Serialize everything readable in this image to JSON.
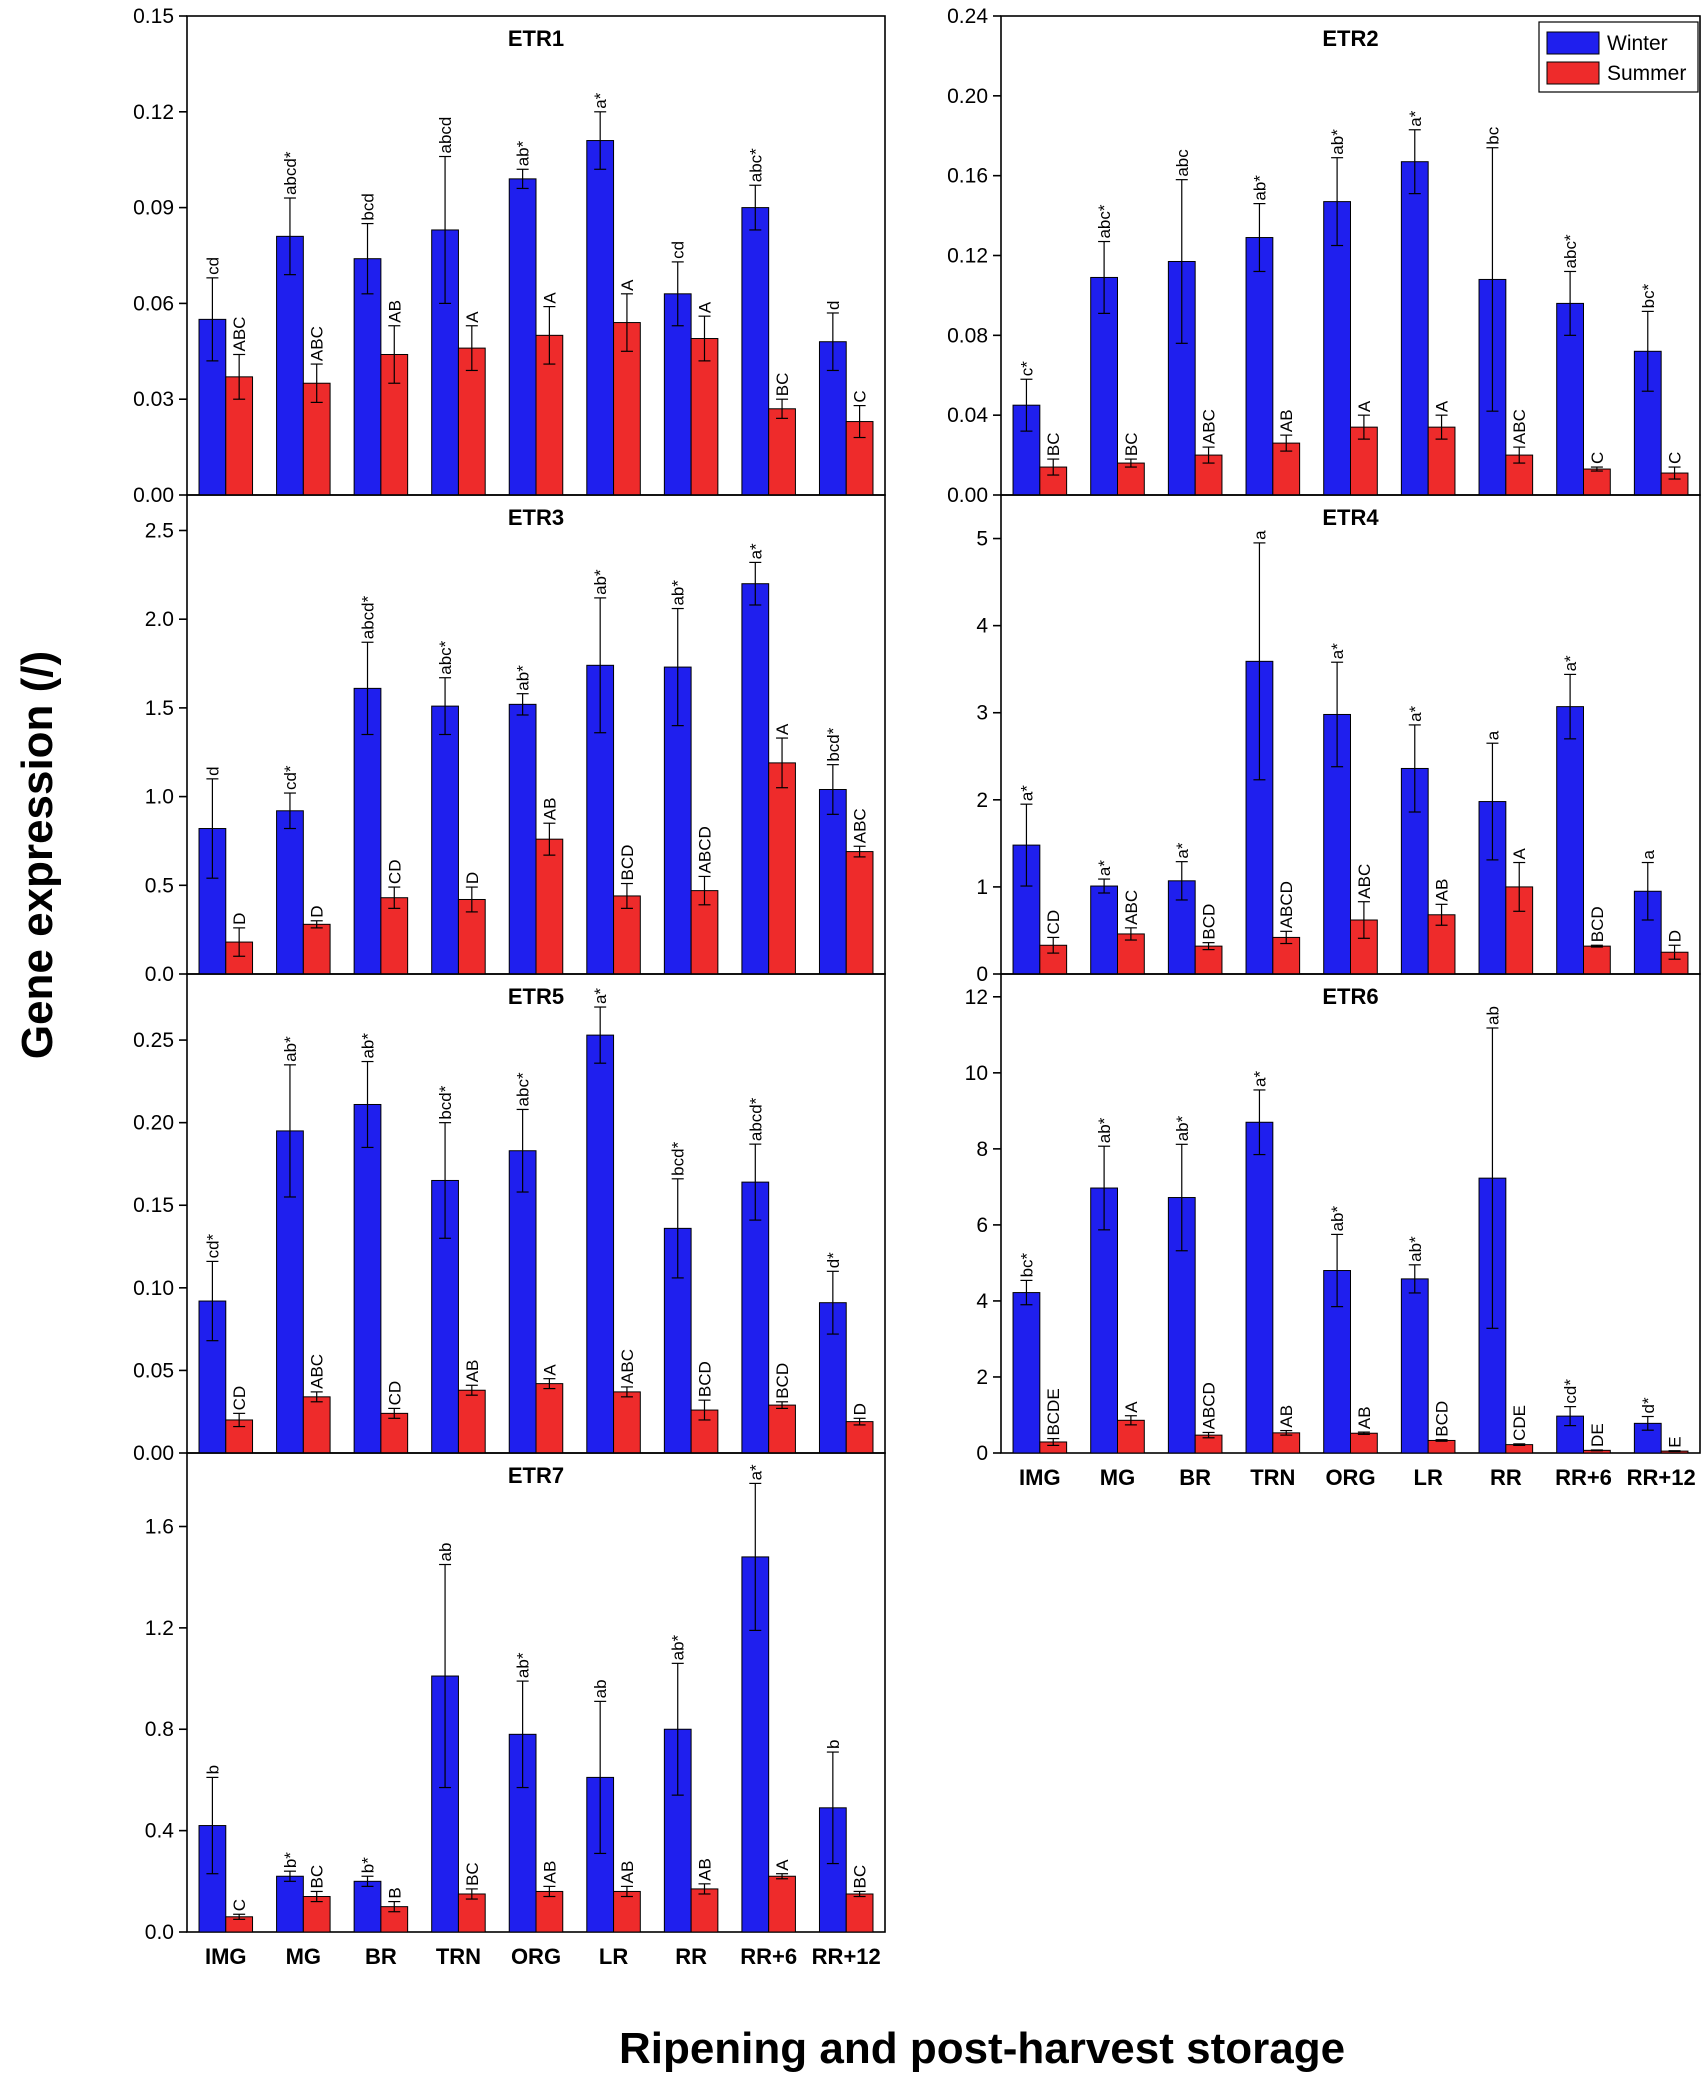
{
  "figure": {
    "ylabel": "Gene expression (/)",
    "xlabel": "Ripening and post-harvest storage",
    "legend": [
      {
        "name": "Winter",
        "color": "#1f1fee"
      },
      {
        "name": "Summer",
        "color": "#ee2b2b"
      }
    ]
  },
  "chart_data": [
    {
      "type": "bar",
      "title": "ETR1",
      "categories": [
        "IMG",
        "MG",
        "BR",
        "TRN",
        "ORG",
        "LR",
        "RR",
        "RR+6",
        "RR+12"
      ],
      "ylim": [
        0,
        0.15
      ],
      "yticks": [
        0,
        0.03,
        0.06,
        0.09,
        0.12,
        0.15
      ],
      "decimals": 2,
      "series": [
        {
          "name": "Winter",
          "values": [
            0.055,
            0.081,
            0.074,
            0.083,
            0.099,
            0.111,
            0.063,
            0.09,
            0.048
          ],
          "errors": [
            0.013,
            0.012,
            0.011,
            0.023,
            0.003,
            0.009,
            0.01,
            0.007,
            0.009
          ],
          "labels": [
            "cd",
            "abcd*",
            "bcd",
            "abcd",
            "ab*",
            "a*",
            "cd",
            "abc*",
            "d"
          ]
        },
        {
          "name": "Summer",
          "values": [
            0.037,
            0.035,
            0.044,
            0.046,
            0.05,
            0.054,
            0.049,
            0.027,
            0.023
          ],
          "errors": [
            0.007,
            0.006,
            0.009,
            0.007,
            0.009,
            0.009,
            0.007,
            0.003,
            0.005
          ],
          "labels": [
            "ABC",
            "ABC",
            "AB",
            "A",
            "A",
            "A",
            "A",
            "BC",
            "C"
          ]
        }
      ]
    },
    {
      "type": "bar",
      "title": "ETR2",
      "categories": [
        "IMG",
        "MG",
        "BR",
        "TRN",
        "ORG",
        "LR",
        "RR",
        "RR+6",
        "RR+12"
      ],
      "ylim": [
        0,
        0.24
      ],
      "yticks": [
        0,
        0.04,
        0.08,
        0.12,
        0.16,
        0.2,
        0.24
      ],
      "decimals": 2,
      "series": [
        {
          "name": "Winter",
          "values": [
            0.045,
            0.109,
            0.117,
            0.129,
            0.147,
            0.167,
            0.108,
            0.096,
            0.072
          ],
          "errors": [
            0.013,
            0.018,
            0.041,
            0.017,
            0.022,
            0.016,
            0.066,
            0.016,
            0.02
          ],
          "labels": [
            "c*",
            "abc*",
            "abc",
            "ab*",
            "ab*",
            "a*",
            "bc",
            "abc*",
            "bc*"
          ]
        },
        {
          "name": "Summer",
          "values": [
            0.014,
            0.016,
            0.02,
            0.026,
            0.034,
            0.034,
            0.02,
            0.013,
            0.011
          ],
          "errors": [
            0.004,
            0.002,
            0.004,
            0.004,
            0.006,
            0.006,
            0.004,
            0.001,
            0.003
          ],
          "labels": [
            "BC",
            "BC",
            "ABC",
            "AB",
            "A",
            "A",
            "ABC",
            "C",
            "C"
          ]
        }
      ]
    },
    {
      "type": "bar",
      "title": "ETR3",
      "categories": [
        "IMG",
        "MG",
        "BR",
        "TRN",
        "ORG",
        "LR",
        "RR",
        "RR+6",
        "RR+12"
      ],
      "ylim": [
        0,
        2.7
      ],
      "yticks": [
        0,
        0.5,
        1.0,
        1.5,
        2.0,
        2.5
      ],
      "decimals": 1,
      "series": [
        {
          "name": "Winter",
          "values": [
            0.82,
            0.92,
            1.61,
            1.51,
            1.52,
            1.74,
            1.73,
            2.2,
            1.04
          ],
          "errors": [
            0.28,
            0.1,
            0.26,
            0.16,
            0.06,
            0.38,
            0.33,
            0.12,
            0.14
          ],
          "labels": [
            "d",
            "cd*",
            "abcd*",
            "abc*",
            "ab*",
            "ab*",
            "ab*",
            "a*",
            "bcd*"
          ]
        },
        {
          "name": "Summer",
          "values": [
            0.18,
            0.28,
            0.43,
            0.42,
            0.76,
            0.44,
            0.47,
            1.19,
            0.69
          ],
          "errors": [
            0.08,
            0.02,
            0.06,
            0.07,
            0.09,
            0.07,
            0.08,
            0.14,
            0.03
          ],
          "labels": [
            "D",
            "D",
            "CD",
            "D",
            "AB",
            "BCD",
            "ABCD",
            "A",
            "ABC"
          ]
        }
      ]
    },
    {
      "type": "bar",
      "title": "ETR4",
      "categories": [
        "IMG",
        "MG",
        "BR",
        "TRN",
        "ORG",
        "LR",
        "RR",
        "RR+6",
        "RR+12"
      ],
      "ylim": [
        0,
        5.5
      ],
      "yticks": [
        0,
        1,
        2,
        3,
        4,
        5
      ],
      "decimals": 0,
      "series": [
        {
          "name": "Winter",
          "values": [
            1.48,
            1.01,
            1.07,
            3.59,
            2.98,
            2.36,
            1.98,
            3.07,
            0.95
          ],
          "errors": [
            0.47,
            0.08,
            0.22,
            1.36,
            0.6,
            0.5,
            0.67,
            0.37,
            0.33
          ],
          "labels": [
            "a*",
            "a*",
            "a*",
            "a",
            "a*",
            "a*",
            "a",
            "a*",
            "a"
          ]
        },
        {
          "name": "Summer",
          "values": [
            0.33,
            0.46,
            0.32,
            0.42,
            0.62,
            0.68,
            1.0,
            0.32,
            0.25
          ],
          "errors": [
            0.09,
            0.07,
            0.04,
            0.07,
            0.21,
            0.12,
            0.28,
            0.01,
            0.08
          ],
          "labels": [
            "CD",
            "ABC",
            "BCD",
            "ABCD",
            "ABC",
            "AB",
            "A",
            "BCD",
            "D"
          ]
        }
      ]
    },
    {
      "type": "bar",
      "title": "ETR5",
      "categories": [
        "IMG",
        "MG",
        "BR",
        "TRN",
        "ORG",
        "LR",
        "RR",
        "RR+6",
        "RR+12"
      ],
      "ylim": [
        0,
        0.29
      ],
      "yticks": [
        0,
        0.05,
        0.1,
        0.15,
        0.2,
        0.25
      ],
      "decimals": 2,
      "series": [
        {
          "name": "Winter",
          "values": [
            0.092,
            0.195,
            0.211,
            0.165,
            0.183,
            0.253,
            0.136,
            0.164,
            0.091
          ],
          "errors": [
            0.024,
            0.04,
            0.026,
            0.035,
            0.025,
            0.017,
            0.03,
            0.023,
            0.019
          ],
          "labels": [
            "cd*",
            "ab*",
            "ab*",
            "bcd*",
            "abc*",
            "a*",
            "bcd*",
            "abcd*",
            "d*"
          ]
        },
        {
          "name": "Summer",
          "values": [
            0.02,
            0.034,
            0.024,
            0.038,
            0.042,
            0.037,
            0.026,
            0.029,
            0.019
          ],
          "errors": [
            0.004,
            0.003,
            0.003,
            0.003,
            0.003,
            0.003,
            0.006,
            0.002,
            0.002
          ],
          "labels": [
            "CD",
            "ABC",
            "CD",
            "AB",
            "A",
            "ABC",
            "BCD",
            "BCD",
            "D"
          ]
        }
      ]
    },
    {
      "type": "bar",
      "title": "ETR6",
      "categories": [
        "IMG",
        "MG",
        "BR",
        "TRN",
        "ORG",
        "LR",
        "RR",
        "RR+6",
        "RR+12"
      ],
      "ylim": [
        0,
        12.6
      ],
      "yticks": [
        0,
        2,
        4,
        6,
        8,
        10,
        12
      ],
      "decimals": 0,
      "series": [
        {
          "name": "Winter",
          "values": [
            4.22,
            6.97,
            6.72,
            8.7,
            4.8,
            4.58,
            7.23,
            0.97,
            0.78
          ],
          "errors": [
            0.32,
            1.1,
            1.4,
            0.85,
            0.95,
            0.37,
            3.95,
            0.25,
            0.18
          ],
          "labels": [
            "bc*",
            "ab*",
            "ab*",
            "a*",
            "ab*",
            "ab*",
            "ab",
            "cd*",
            "d*"
          ]
        },
        {
          "name": "Summer",
          "values": [
            0.29,
            0.86,
            0.47,
            0.53,
            0.52,
            0.33,
            0.22,
            0.07,
            0.05
          ],
          "errors": [
            0.09,
            0.12,
            0.07,
            0.06,
            0.03,
            0.02,
            0.02,
            0.01,
            0.01
          ],
          "labels": [
            "BCDE",
            "A",
            "ABCD",
            "AB",
            "AB",
            "BCD",
            "CDE",
            "DE",
            "E"
          ]
        }
      ]
    },
    {
      "type": "bar",
      "title": "ETR7",
      "categories": [
        "IMG",
        "MG",
        "BR",
        "TRN",
        "ORG",
        "LR",
        "RR",
        "RR+6",
        "RR+12"
      ],
      "ylim": [
        0,
        1.89
      ],
      "yticks": [
        0,
        0.4,
        0.8,
        1.2,
        1.6
      ],
      "decimals": 1,
      "series": [
        {
          "name": "Winter",
          "values": [
            0.42,
            0.22,
            0.2,
            1.01,
            0.78,
            0.61,
            0.8,
            1.48,
            0.49
          ],
          "errors": [
            0.19,
            0.02,
            0.02,
            0.44,
            0.21,
            0.3,
            0.26,
            0.29,
            0.22
          ],
          "labels": [
            "b",
            "b*",
            "b*",
            "ab",
            "ab*",
            "ab",
            "ab*",
            "a*",
            "b"
          ]
        },
        {
          "name": "Summer",
          "values": [
            0.06,
            0.14,
            0.1,
            0.15,
            0.16,
            0.16,
            0.17,
            0.22,
            0.15
          ],
          "errors": [
            0.01,
            0.02,
            0.02,
            0.02,
            0.02,
            0.02,
            0.02,
            0.01,
            0.01
          ],
          "labels": [
            "C",
            "BC",
            "B",
            "BC",
            "AB",
            "AB",
            "AB",
            "A",
            "BC"
          ]
        }
      ]
    }
  ]
}
